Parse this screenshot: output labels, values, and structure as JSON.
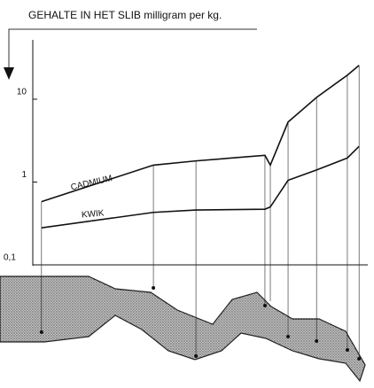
{
  "chart_data": {
    "type": "line",
    "title": "GEHALTE IN HET SLIB milligram per kg.",
    "x": [
      2.6,
      36,
      48.7,
      69.3,
      70.9,
      76.2,
      84.7,
      93.9,
      97.4
    ],
    "xlim": [
      0,
      100
    ],
    "series": [
      {
        "name": "CADMIUM",
        "color": "#111111",
        "values": [
          0.58,
          1.6,
          1.8,
          2.1,
          1.6,
          5.3,
          10.5,
          19.5,
          25.6
        ]
      },
      {
        "name": "KWIK",
        "color": "#111111",
        "values": [
          0.28,
          0.43,
          0.46,
          0.47,
          0.5,
          1.05,
          1.4,
          1.95,
          2.7
        ]
      }
    ],
    "ylim": [
      0.1,
      46
    ],
    "yticks": [
      {
        "value": 0.1,
        "label": "0,1"
      },
      1,
      10
    ],
    "log_scale_y": true
  }
}
